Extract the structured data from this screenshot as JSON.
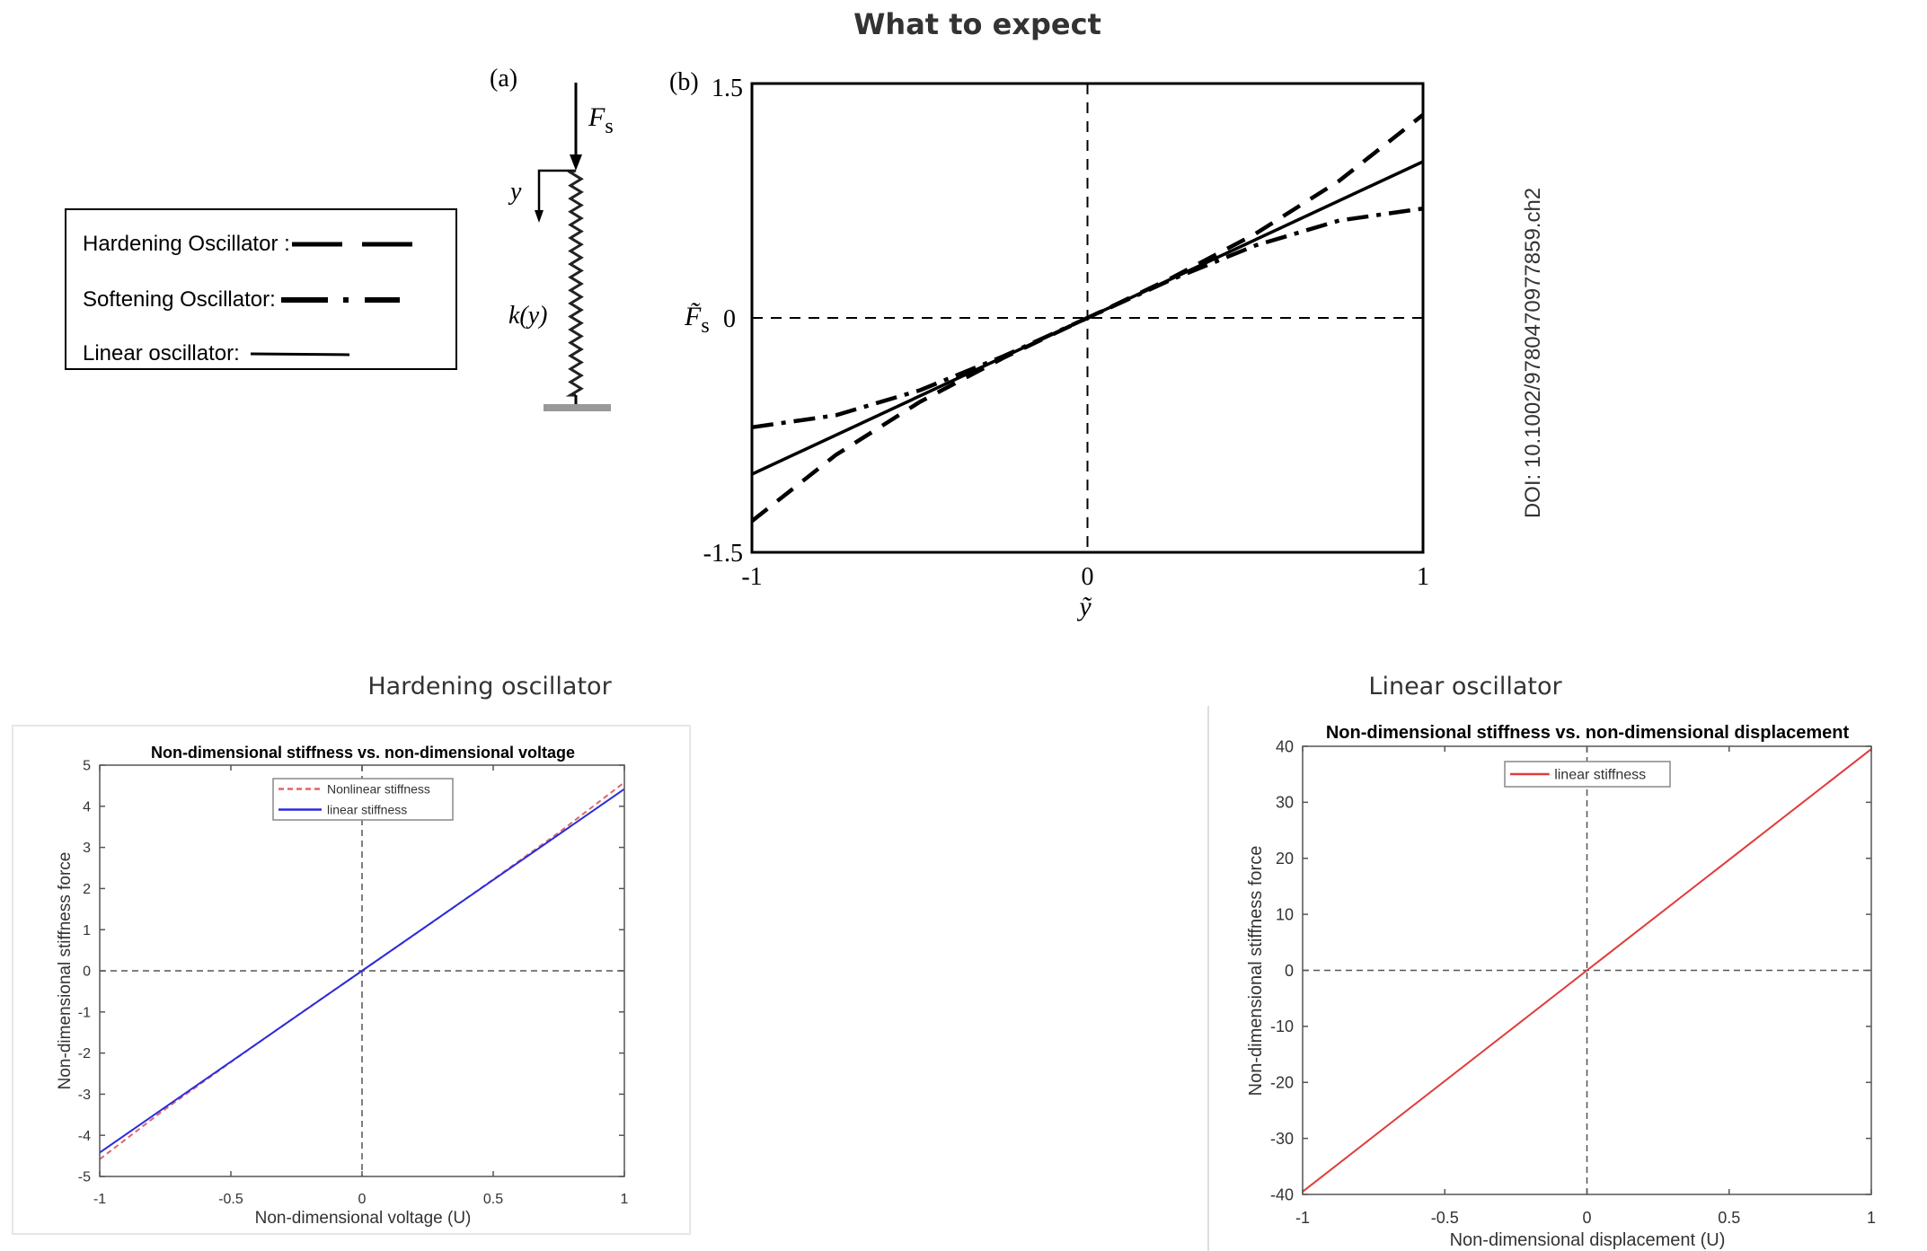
{
  "page_title": "What to expect",
  "legend": {
    "items": [
      {
        "label": "Hardening Oscillator :",
        "style": "dashed"
      },
      {
        "label": "Softening Oscillator:",
        "style": "dash-dot"
      },
      {
        "label": "Linear oscillator:",
        "style": "solid"
      }
    ]
  },
  "diagram_a": {
    "panel_label": "(a)",
    "force_label": "F",
    "force_sub": "s",
    "displacement_label": "y",
    "stiffness_label": "k(y)"
  },
  "doi": "DOI: 10.1002/9780470977859.ch2",
  "sections": {
    "hardening_title": "Hardening oscillator",
    "linear_title": "Linear oscillator"
  },
  "chart_data": [
    {
      "id": "b",
      "type": "line",
      "panel_label": "(b)",
      "title": "",
      "xlabel": "ỹ",
      "ylabel": "F̃",
      "ylabel_sub": "s",
      "xlim": [
        -1,
        1
      ],
      "ylim": [
        -1.5,
        1.5
      ],
      "xticks": [
        -1,
        0,
        1
      ],
      "yticks": [
        -1.5,
        0,
        1.5
      ],
      "zero_lines": true,
      "grid": false,
      "series": [
        {
          "style": "dashed",
          "color": "#000000",
          "x": [
            -1,
            -0.75,
            -0.5,
            -0.25,
            0,
            0.25,
            0.5,
            0.75,
            1
          ],
          "y": [
            -1.3,
            -0.877,
            -0.538,
            -0.255,
            0,
            0.255,
            0.538,
            0.877,
            1.3
          ]
        },
        {
          "style": "dash-dot",
          "color": "#000000",
          "x": [
            -1,
            -0.75,
            -0.5,
            -0.25,
            0,
            0.25,
            0.5,
            0.75,
            1
          ],
          "y": [
            -0.7,
            -0.623,
            -0.463,
            -0.245,
            0,
            0.245,
            0.463,
            0.623,
            0.7
          ]
        },
        {
          "style": "solid",
          "color": "#000000",
          "x": [
            -1,
            1
          ],
          "y": [
            -1,
            1
          ]
        }
      ]
    },
    {
      "id": "hard",
      "type": "line",
      "title": "Non-dimensional stiffness vs. non-dimensional voltage",
      "xlabel": "Non-dimensional voltage (U)",
      "ylabel": "Non-dimensional stiffness force",
      "xlim": [
        -1,
        1
      ],
      "ylim": [
        -5,
        5
      ],
      "xticks": [
        -1,
        -0.5,
        0,
        0.5,
        1
      ],
      "yticks": [
        -5,
        -4,
        -3,
        -2,
        -1,
        0,
        1,
        2,
        3,
        4,
        5
      ],
      "zero_lines": true,
      "grid": false,
      "legend_position": "top-center",
      "series": [
        {
          "name": "Nonlinear stiffness",
          "style": "dashed",
          "color": "#e06666",
          "x": [
            -1,
            -0.75,
            -0.5,
            -0.25,
            0,
            0.25,
            0.5,
            0.75,
            1
          ],
          "y": [
            -4.58,
            -3.36,
            -2.22,
            -1.1,
            0,
            1.1,
            2.22,
            3.36,
            4.58
          ]
        },
        {
          "name": "linear stiffness",
          "style": "solid",
          "color": "#2b2bdc",
          "x": [
            -1,
            1
          ],
          "y": [
            -4.42,
            4.42
          ]
        }
      ]
    },
    {
      "id": "lin",
      "type": "line",
      "title": "Non-dimensional stiffness vs. non-dimensional displacement",
      "xlabel": "Non-dimensional displacement (U)",
      "ylabel": "Non-dimensional stiffness force",
      "xlim": [
        -1,
        1
      ],
      "ylim": [
        -40,
        40
      ],
      "xticks": [
        -1,
        -0.5,
        0,
        0.5,
        1
      ],
      "yticks": [
        -40,
        -30,
        -20,
        -10,
        0,
        10,
        20,
        30,
        40
      ],
      "zero_lines": true,
      "grid": false,
      "legend_position": "top-center",
      "series": [
        {
          "name": "linear stiffness",
          "style": "solid",
          "color": "#e03c3c",
          "x": [
            -1,
            1
          ],
          "y": [
            -39.5,
            39.5
          ]
        }
      ]
    }
  ]
}
